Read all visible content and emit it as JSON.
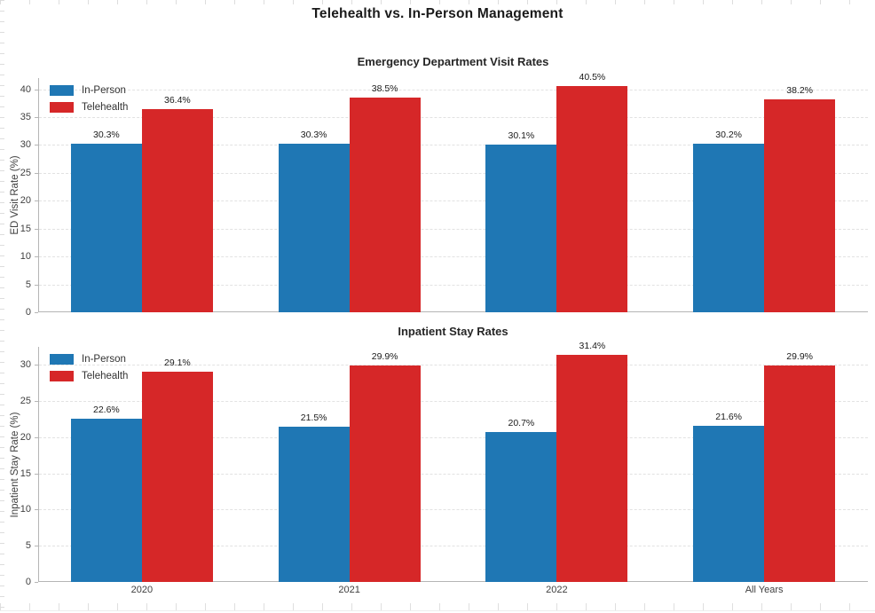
{
  "page": {
    "title": "Telehealth vs. In-Person Management"
  },
  "colors": {
    "in_person": "#1f77b4",
    "telehealth": "#d62728",
    "grid": "#e2e2e2",
    "spine": "#b5b5b5",
    "title_text": "#1a1a1a",
    "tick_text": "#404040"
  },
  "legend": {
    "items": [
      {
        "key": "in_person",
        "label": "In-Person"
      },
      {
        "key": "telehealth",
        "label": "Telehealth"
      }
    ]
  },
  "chart_data": [
    {
      "type": "bar",
      "title": "Emergency Department Visit Rates",
      "xlabel": "",
      "ylabel": "ED Visit Rate (%)",
      "categories": [
        "2020",
        "2021",
        "2022",
        "All Years"
      ],
      "series": [
        {
          "name": "In-Person",
          "color_key": "in_person",
          "values": [
            30.3,
            30.3,
            30.1,
            30.2
          ]
        },
        {
          "name": "Telehealth",
          "color_key": "telehealth",
          "values": [
            36.4,
            38.5,
            40.5,
            38.2
          ]
        }
      ],
      "value_label_suffix": "%",
      "yticks": [
        0,
        5,
        10,
        15,
        20,
        25,
        30,
        35,
        40
      ],
      "ylim": [
        0,
        42
      ],
      "grid": true,
      "legend_position": "upper left",
      "show_x_tick_labels": false
    },
    {
      "type": "bar",
      "title": "Inpatient Stay Rates",
      "xlabel": "",
      "ylabel": "Inpatient Stay Rate (%)",
      "categories": [
        "2020",
        "2021",
        "2022",
        "All Years"
      ],
      "series": [
        {
          "name": "In-Person",
          "color_key": "in_person",
          "values": [
            22.6,
            21.5,
            20.7,
            21.6
          ]
        },
        {
          "name": "Telehealth",
          "color_key": "telehealth",
          "values": [
            29.1,
            29.9,
            31.4,
            29.9
          ]
        }
      ],
      "value_label_suffix": "%",
      "yticks": [
        0,
        5,
        10,
        15,
        20,
        25,
        30
      ],
      "ylim": [
        0,
        32.5
      ],
      "grid": true,
      "legend_position": "upper left",
      "show_x_tick_labels": true
    }
  ]
}
